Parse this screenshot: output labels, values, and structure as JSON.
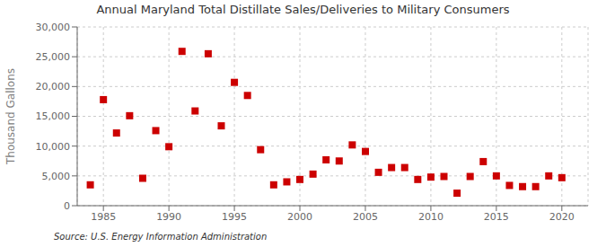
{
  "chart_data": {
    "type": "scatter",
    "title": "Annual Maryland Total Distillate Sales/Deliveries to Military Consumers",
    "ylabel": "Thousand Gallons",
    "annotations": [
      "Source: U.S. Energy Information Administration"
    ],
    "x": [
      1984,
      1985,
      1986,
      1987,
      1988,
      1989,
      1990,
      1991,
      1992,
      1993,
      1994,
      1995,
      1996,
      1997,
      1998,
      1999,
      2000,
      2001,
      2002,
      2003,
      2004,
      2005,
      2006,
      2007,
      2008,
      2009,
      2010,
      2011,
      2012,
      2013,
      2014,
      2015,
      2016,
      2017,
      2018,
      2019,
      2020
    ],
    "values": [
      3500,
      17800,
      12200,
      15100,
      4600,
      12600,
      9900,
      25900,
      15900,
      25500,
      13400,
      20700,
      18500,
      9400,
      3500,
      4000,
      4400,
      5300,
      7700,
      7500,
      10200,
      9100,
      5600,
      6400,
      6400,
      4400,
      4800,
      4900,
      2100,
      4900,
      7400,
      5000,
      3400,
      3200,
      3200,
      5000,
      4700
    ],
    "color": "#cc0000",
    "marker": "square",
    "xlim": [
      1983,
      2022
    ],
    "ylim": [
      0,
      30000
    ],
    "xticks": [
      1985,
      1990,
      1995,
      2000,
      2005,
      2010,
      2015,
      2020
    ],
    "yticks": [
      0,
      {
        "value": 5000,
        "label": "5,000"
      },
      {
        "value": 10000,
        "label": "10,000"
      },
      {
        "value": 15000,
        "label": "15,000"
      },
      {
        "value": 20000,
        "label": "20,000"
      },
      {
        "value": 25000,
        "label": "25,000"
      },
      {
        "value": 30000,
        "label": "30,000"
      }
    ],
    "grid": true
  }
}
